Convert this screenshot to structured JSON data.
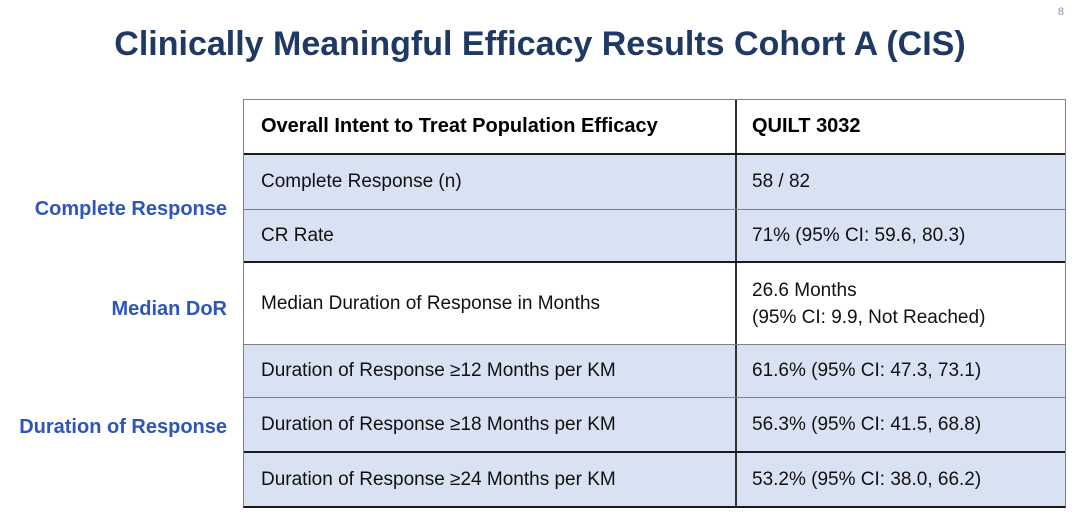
{
  "slide": {
    "title": "Clinically Meaningful Efficacy Results Cohort A (CIS)",
    "page_number": "8"
  },
  "colors": {
    "title_navy": "#1F3864",
    "side_label_blue": "#2D55BA",
    "row_shade_blue": "#D9E2F3",
    "border_dark": "#1a1a1a",
    "border_light": "#808080"
  },
  "side_labels": {
    "complete_response": "Complete Response",
    "median_dor": "Median DoR",
    "duration_of_response": "Duration of Response"
  },
  "table": {
    "header": {
      "col1": "Overall Intent to Treat Population Efficacy",
      "col2": "QUILT 3032"
    },
    "rows": [
      {
        "label": "Complete Response (n)",
        "value": "58 / 82"
      },
      {
        "label": "CR Rate",
        "value": "71% (95% CI: 59.6, 80.3)"
      },
      {
        "label": "Median Duration of Response in Months",
        "value_line1": "26.6 Months",
        "value_line2": "(95% CI: 9.9, Not Reached)"
      },
      {
        "label": "Duration of Response ≥12 Months per KM",
        "value": "61.6% (95% CI: 47.3, 73.1)"
      },
      {
        "label": "Duration of Response ≥18 Months per KM",
        "value": "56.3% (95% CI: 41.5, 68.8)"
      },
      {
        "label": "Duration of Response ≥24 Months per KM",
        "value": "53.2% (95% CI: 38.0, 66.2)"
      }
    ]
  }
}
